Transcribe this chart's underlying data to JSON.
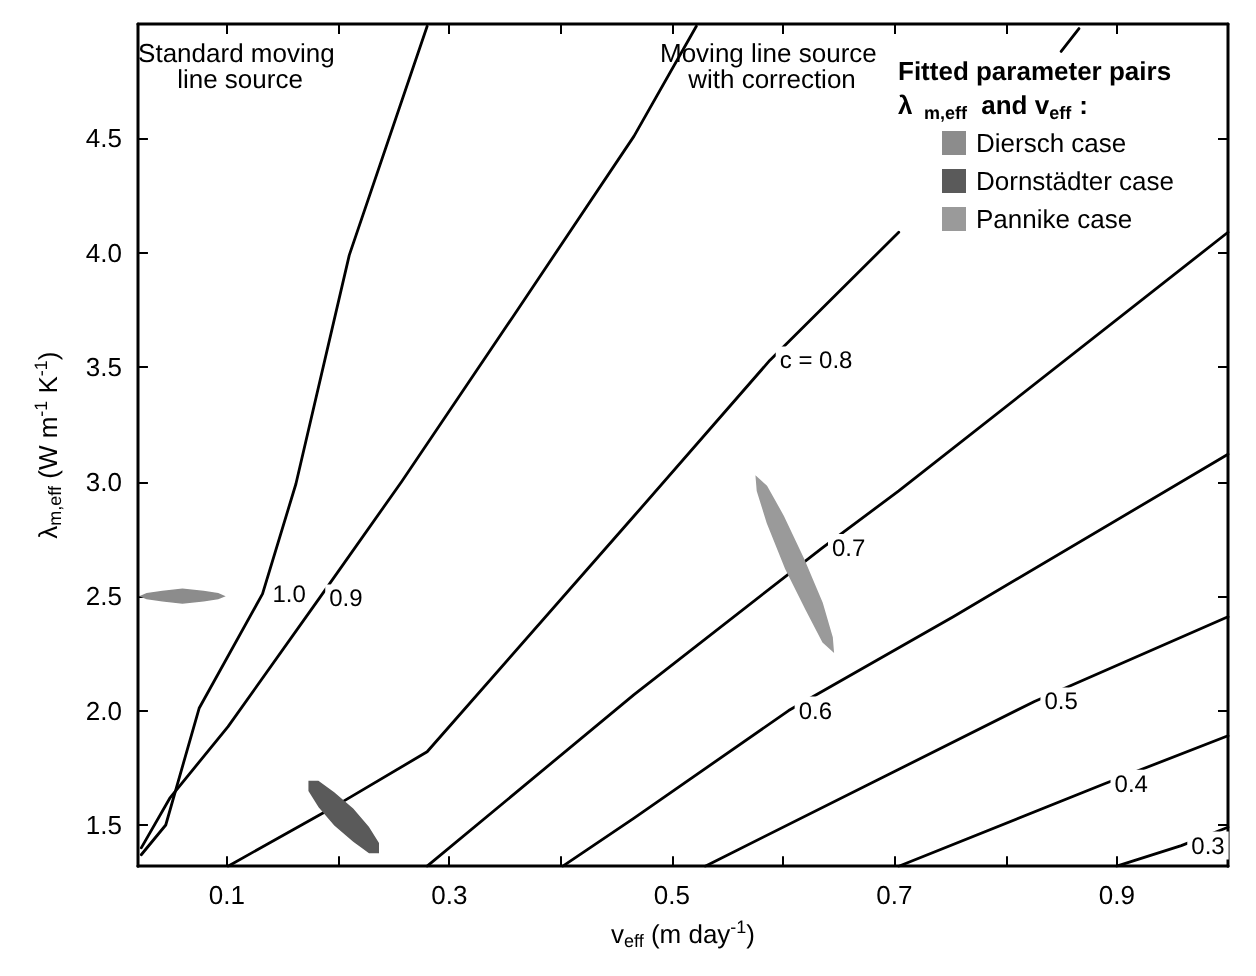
{
  "chart_data": {
    "type": "line",
    "xlabel": "v$_{eff}$ (m day$^{-1}$)",
    "ylabel": "λ$_{m,eff}$ (W m$^{-1}$ K$^{-1}$)",
    "legend_title": "Fitted parameter pairs λ$_{m,eff}$ and v$_{eff}$:",
    "xlim": [
      0.02,
      1.0
    ],
    "ylim": [
      1.32,
      5.0
    ],
    "xticks": [
      0.1,
      {
        "value": 0.2,
        "label": null
      },
      0.3,
      {
        "value": 0.4,
        "label": null
      },
      0.5,
      {
        "value": 0.6,
        "label": null
      },
      0.7,
      {
        "value": 0.8,
        "label": null
      },
      0.9
    ],
    "yticks": [
      1.5,
      {
        "value": 2,
        "label": "2.0"
      },
      2.5,
      {
        "value": 3,
        "label": "3.0"
      },
      3.5,
      {
        "value": 4,
        "label": "4.0"
      },
      4.5
    ],
    "grid": false,
    "legend": "top right",
    "marker": "none",
    "line_style": "solid",
    "annotations": [
      "Standard moving line source",
      "Moving line source with correction"
    ],
    "series": [
      {
        "name": "1.0",
        "color": "#000000",
        "x": [
          0.023,
          0.045,
          0.075,
          0.132,
          0.162,
          0.21,
          0.28
        ],
        "values": [
          1.37,
          1.5,
          2.01,
          2.51,
          2.99,
          3.99,
          4.99
        ]
      },
      {
        "name": "0.9",
        "color": "#000000",
        "x": [
          0.023,
          0.049,
          0.101,
          0.183,
          0.257,
          0.357,
          0.466,
          0.522
        ],
        "values": [
          1.4,
          1.62,
          1.93,
          2.49,
          3.0,
          3.72,
          4.51,
          4.99
        ]
      },
      {
        "name": "c = 0.8",
        "color": "#000000",
        "x": [
          0.101,
          0.2,
          0.28,
          0.466,
          0.588,
          0.704,
          null,
          0.85,
          0.866
        ],
        "values": [
          1.32,
          1.59,
          1.82,
          2.85,
          3.53,
          4.09,
          null,
          4.88,
          4.98
        ]
      },
      {
        "name": "0.7",
        "color": "#000000",
        "x": [
          0.28,
          0.466,
          0.635,
          0.704,
          1.0
        ],
        "values": [
          1.32,
          2.07,
          2.71,
          2.96,
          4.09
        ]
      },
      {
        "name": "0.6",
        "color": "#000000",
        "x": [
          0.402,
          0.466,
          0.605,
          0.753,
          1.0
        ],
        "values": [
          1.32,
          1.53,
          2.0,
          2.41,
          3.12
        ]
      },
      {
        "name": "0.5",
        "color": "#000000",
        "x": [
          0.53,
          0.826,
          1.0
        ],
        "values": [
          1.32,
          2.04,
          2.41
        ]
      },
      {
        "name": "0.4",
        "color": "#000000",
        "x": [
          0.704,
          0.889,
          1.0
        ],
        "values": [
          1.32,
          1.68,
          1.89
        ]
      },
      {
        "name": "0.3",
        "color": "#000000",
        "x": [
          0.9,
          0.958,
          1.0
        ],
        "values": [
          1.32,
          1.41,
          1.49
        ]
      },
      {
        "name": "Diersch case",
        "type": "area",
        "color": "#8c8c8c",
        "x": [
          0.097,
          0.092,
          0.079,
          0.06,
          0.042,
          0.028,
          0.023,
          0.028,
          0.042,
          0.06,
          0.079,
          0.092,
          0.097
        ],
        "values": [
          2.5,
          2.51,
          2.52,
          2.53,
          2.52,
          2.51,
          2.5,
          2.49,
          2.48,
          2.47,
          2.48,
          2.49,
          2.5
        ]
      },
      {
        "name": "Dornstädter case",
        "type": "area",
        "color": "#5a5a5a",
        "x": [
          0.236,
          0.236,
          0.227,
          0.213,
          0.196,
          0.182,
          0.174,
          0.174,
          0.183,
          0.197,
          0.214,
          0.228,
          0.236
        ],
        "values": [
          1.38,
          1.42,
          1.49,
          1.57,
          1.64,
          1.69,
          1.69,
          1.65,
          1.58,
          1.5,
          1.43,
          1.38,
          1.38
        ]
      },
      {
        "name": "Pannike case",
        "type": "area",
        "color": "#9a9a9a",
        "x": [
          0.645,
          0.644,
          0.635,
          0.6185,
          0.6,
          0.585,
          0.576,
          0.577,
          0.586,
          0.6025,
          0.621,
          0.636,
          0.645
        ],
        "values": [
          2.26,
          2.32,
          2.47,
          2.66,
          2.85,
          2.98,
          3.02,
          2.96,
          2.82,
          2.62,
          2.44,
          2.3,
          2.26
        ]
      }
    ]
  }
}
